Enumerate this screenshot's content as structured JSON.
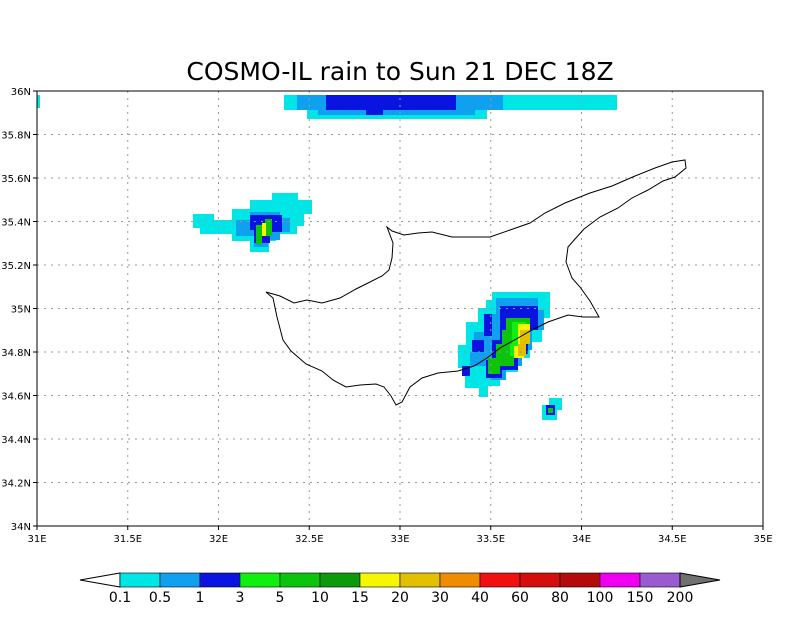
{
  "title": "COSMO-IL rain to Sun 21 DEC 18Z",
  "map": {
    "x_ticks": [
      "31E",
      "31.5E",
      "32E",
      "32.5E",
      "33E",
      "33.5E",
      "34E",
      "34.5E",
      "35E"
    ],
    "y_ticks": [
      "34N",
      "34.2N",
      "34.4N",
      "34.6N",
      "34.8N",
      "35N",
      "35.2N",
      "35.4N",
      "35.6N",
      "35.8N",
      "36N"
    ],
    "lon_range": [
      31,
      35
    ],
    "lat_range": [
      34,
      36
    ],
    "grid": "dotted",
    "coastline": "Cyprus"
  },
  "colorbar": {
    "labels": [
      "0.1",
      "0.5",
      "1",
      "3",
      "5",
      "10",
      "15",
      "20",
      "30",
      "40",
      "60",
      "80",
      "100",
      "150",
      "200"
    ],
    "colors": [
      "#00e5e5",
      "#0fa0f0",
      "#0a14e0",
      "#10f010",
      "#0cc40c",
      "#0a9a0a",
      "#f6f600",
      "#e2c000",
      "#f08c00",
      "#f01010",
      "#d40d0d",
      "#b40a0a",
      "#f000f0",
      "#9a5ad0",
      "#707070"
    ],
    "under_color": "#ffffff"
  }
}
